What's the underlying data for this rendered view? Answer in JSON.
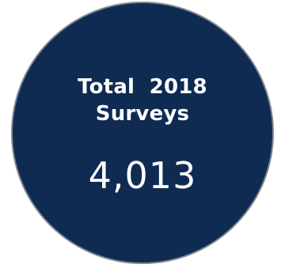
{
  "stat": {
    "title_line1": "Total  2018",
    "title_line2": "Surveys",
    "value": "4,013"
  },
  "colors": {
    "circle_fill": "#0f2b52",
    "circle_border": "#7f8790",
    "text": "#ffffff",
    "background": "#ffffff"
  }
}
